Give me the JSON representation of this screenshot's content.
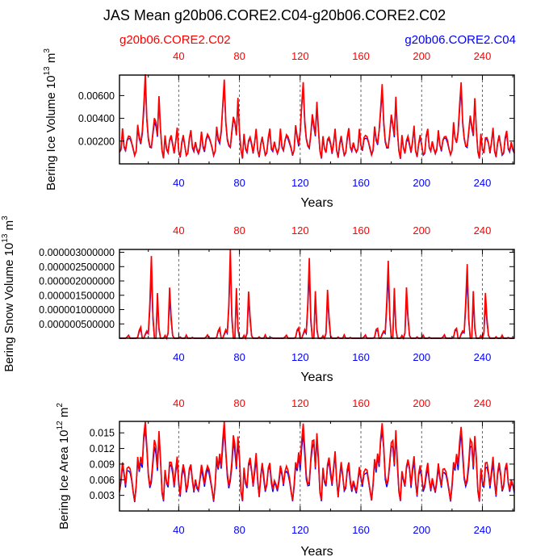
{
  "title": "JAS Mean g20b06.CORE2.C04-g20b06.CORE2.C02",
  "case_red": "g20b06.CORE2.C02",
  "case_blue": "g20b06.CORE2.C04",
  "colors": {
    "red": "#ff0000",
    "blue": "#0000ff",
    "frame": "#000000",
    "dash": "#555555"
  },
  "chart_data": [
    {
      "type": "line",
      "id": "ice-volume",
      "xlabel": "Years",
      "ylabel": "Bering Ice Volume 10",
      "ylabel_exp": "13",
      "ylabel_unit": " m",
      "ylabel_unit_exp": "3",
      "xlim": [
        1,
        261
      ],
      "ylim": [
        0.0,
        0.0078
      ],
      "yticks": [
        0.002,
        0.004,
        0.006
      ],
      "yticklabels": [
        "0.00200",
        "0.00400",
        "0.00600"
      ],
      "xticks": [
        40,
        80,
        120,
        160,
        200,
        240
      ],
      "xticklabels": [
        "40",
        "80",
        "120",
        "160",
        "200",
        "240"
      ],
      "series": [
        {
          "name": "g20b06.CORE2.C04",
          "color": "#0000ff",
          "values": []
        },
        {
          "name": "g20b06.CORE2.C02",
          "color": "#ff0000",
          "values": []
        }
      ]
    },
    {
      "type": "line",
      "id": "snow-volume",
      "xlabel": "Years",
      "ylabel": "Bering Snow Volume 10",
      "ylabel_exp": "13",
      "ylabel_unit": " m",
      "ylabel_unit_exp": "3",
      "xlim": [
        1,
        261
      ],
      "ylim": [
        0.0,
        3.1e-06
      ],
      "yticks": [
        5e-07,
        1e-06,
        1.5e-06,
        2e-06,
        2.5e-06,
        3e-06
      ],
      "yticklabels": [
        "0.000000500000",
        "0.000001000000",
        "0.000001500000",
        "0.000002000000",
        "0.000002500000",
        "0.000003000000"
      ],
      "xticks": [
        40,
        80,
        120,
        160,
        200,
        240
      ],
      "xticklabels": [
        "40",
        "80",
        "120",
        "160",
        "200",
        "240"
      ],
      "series": [
        {
          "name": "g20b06.CORE2.C04",
          "color": "#0000ff",
          "values": []
        },
        {
          "name": "g20b06.CORE2.C02",
          "color": "#ff0000",
          "values": []
        }
      ]
    },
    {
      "type": "line",
      "id": "ice-area",
      "xlabel": "Years",
      "ylabel": "Bering Ice Area 10",
      "ylabel_exp": "12",
      "ylabel_unit": " m",
      "ylabel_unit_exp": "2",
      "xlim": [
        1,
        261
      ],
      "ylim": [
        0.0,
        0.0172
      ],
      "yticks": [
        0.003,
        0.006,
        0.009,
        0.012,
        0.015
      ],
      "yticklabels": [
        "0.003",
        "0.006",
        "0.009",
        "0.012",
        "0.015"
      ],
      "xticks": [
        40,
        80,
        120,
        160,
        200,
        240
      ],
      "xticklabels": [
        "40",
        "80",
        "120",
        "160",
        "200",
        "240"
      ],
      "series": [
        {
          "name": "g20b06.CORE2.C04",
          "color": "#0000ff",
          "values": []
        },
        {
          "name": "g20b06.CORE2.C02",
          "color": "#ff0000",
          "values": []
        }
      ]
    }
  ]
}
